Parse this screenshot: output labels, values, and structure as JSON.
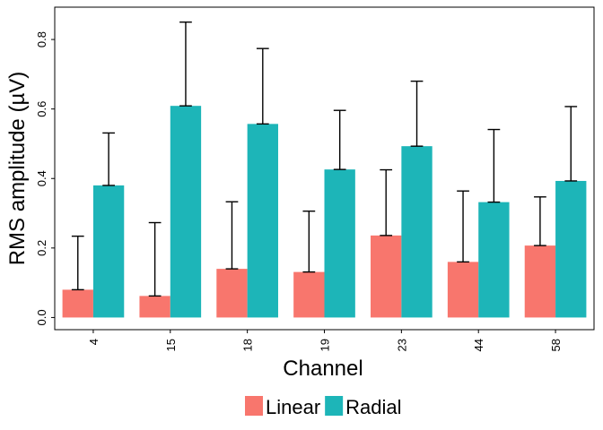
{
  "chart_data": {
    "type": "bar",
    "xlabel": "Channel",
    "ylabel": "RMS amplitude (µV)",
    "categories": [
      "4",
      "15",
      "18",
      "19",
      "23",
      "44",
      "58"
    ],
    "series": [
      {
        "name": "Linear",
        "color": "#F8766D",
        "values": [
          0.08,
          0.062,
          0.14,
          0.131,
          0.236,
          0.16,
          0.207
        ],
        "error_upper": [
          0.234,
          0.273,
          0.333,
          0.306,
          0.425,
          0.364,
          0.347
        ]
      },
      {
        "name": "Radial",
        "color": "#1DB5B8",
        "values": [
          0.38,
          0.609,
          0.557,
          0.426,
          0.493,
          0.332,
          0.393
        ],
        "error_upper": [
          0.531,
          0.85,
          0.774,
          0.596,
          0.68,
          0.541,
          0.607
        ]
      }
    ],
    "yticks": [
      0.0,
      0.2,
      0.4,
      0.6,
      0.8
    ],
    "ytick_labels": [
      "0.0",
      "0.2",
      "0.4",
      "0.6",
      "0.8"
    ],
    "ylim": [
      -0.035,
      0.893
    ],
    "grid": false,
    "legend_position": "bottom",
    "panel_border": true
  }
}
